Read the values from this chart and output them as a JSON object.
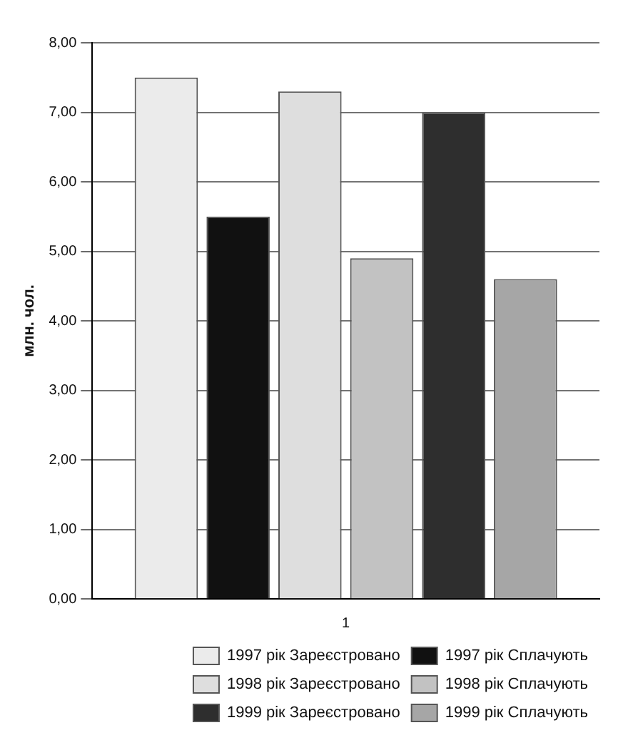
{
  "chart_data": {
    "type": "bar",
    "ylabel": "млн. чол.",
    "categories": [
      "1"
    ],
    "series": [
      {
        "name": "1997 рік Зареєстровано",
        "color": "#ebebeb",
        "values": [
          7.5
        ]
      },
      {
        "name": "1997 рік Сплачують",
        "color": "#111111",
        "values": [
          5.5
        ]
      },
      {
        "name": "1998 рік Зареєстровано",
        "color": "#dedede",
        "values": [
          7.3
        ]
      },
      {
        "name": "1998 рік Сплачують",
        "color": "#c2c2c2",
        "values": [
          4.9
        ]
      },
      {
        "name": "1999 рік Зареєстровано",
        "color": "#2e2e2e",
        "values": [
          7.0
        ]
      },
      {
        "name": "1999 рік Сплачують",
        "color": "#a6a6a6",
        "values": [
          4.6
        ]
      }
    ],
    "ylim": [
      0,
      8
    ],
    "yticks": [
      {
        "value": 0,
        "label": "0,00"
      },
      {
        "value": 1,
        "label": "1,00"
      },
      {
        "value": 2,
        "label": "2,00"
      },
      {
        "value": 3,
        "label": "3,00"
      },
      {
        "value": 4,
        "label": "4,00"
      },
      {
        "value": 5,
        "label": "5,00"
      },
      {
        "value": 6,
        "label": "6,00"
      },
      {
        "value": 7,
        "label": "7,00"
      },
      {
        "value": 8,
        "label": "8,00"
      }
    ],
    "grid": "y",
    "legend": "bottom right"
  }
}
